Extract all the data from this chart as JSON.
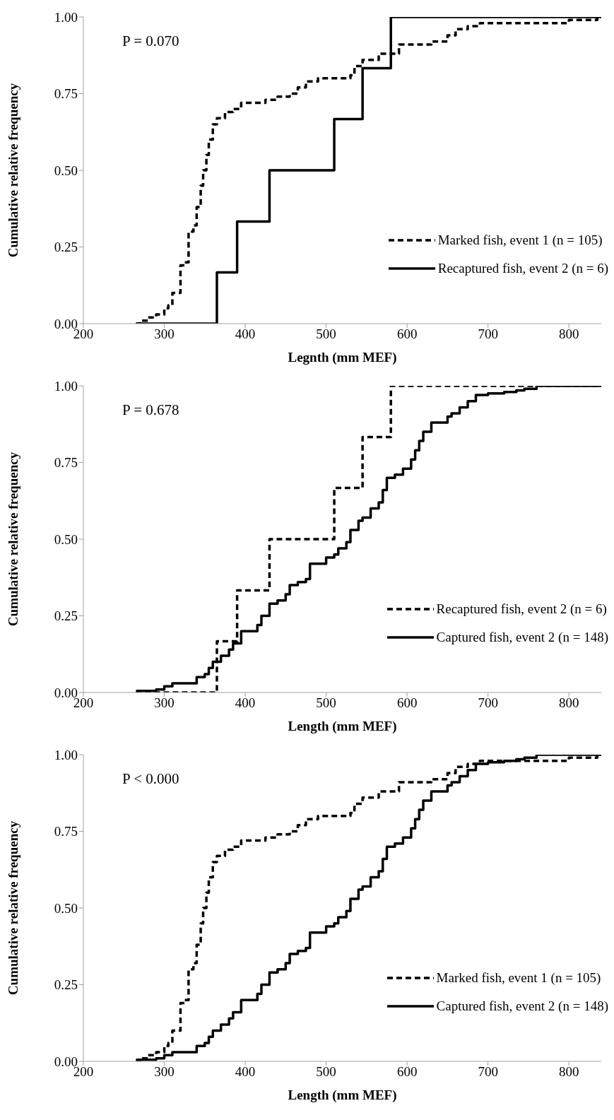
{
  "chart_data": [
    {
      "type": "step",
      "xlabel": "Legnth (mm MEF)",
      "ylabel": "Cumulative relative frequency",
      "annotations": [
        "P = 0.070"
      ],
      "legend": "bottom right",
      "xlim": [
        200,
        840
      ],
      "xticks": [
        200,
        300,
        400,
        500,
        600,
        700,
        800
      ],
      "ylim": [
        0,
        1
      ],
      "yticks": [
        {
          "value": 0,
          "label": "0.00"
        },
        {
          "value": 0.25,
          "label": "0.25"
        },
        {
          "value": 0.5,
          "label": "0.50"
        },
        {
          "value": 0.75,
          "label": "0.75"
        },
        {
          "value": 1,
          "label": "1.00"
        }
      ],
      "series": [
        {
          "name": "Marked fish, event 1 (n = 105)",
          "color": "#000000",
          "line_style": "dashed",
          "x": [
            265,
            270,
            280,
            290,
            300,
            305,
            310,
            320,
            325,
            330,
            336,
            340,
            345,
            348,
            352,
            355,
            360,
            365,
            375,
            385,
            395,
            415,
            425,
            440,
            455,
            465,
            475,
            490,
            530,
            535,
            545,
            565,
            590,
            630,
            650,
            660,
            675,
            690,
            800,
            835
          ],
          "values": [
            0,
            0.01,
            0.02,
            0.03,
            0.05,
            0.06,
            0.1,
            0.19,
            0.2,
            0.3,
            0.32,
            0.38,
            0.45,
            0.5,
            0.55,
            0.6,
            0.65,
            0.67,
            0.69,
            0.7,
            0.72,
            0.72,
            0.73,
            0.74,
            0.75,
            0.77,
            0.79,
            0.8,
            0.81,
            0.84,
            0.86,
            0.88,
            0.91,
            0.92,
            0.94,
            0.96,
            0.97,
            0.98,
            0.99,
            1
          ]
        },
        {
          "name": "Recaptured fish, event 2 (n = 6)",
          "color": "#000000",
          "line_style": "solid",
          "x": [
            265,
            365,
            390,
            430,
            510,
            545,
            580,
            840
          ],
          "values": [
            0,
            0.167,
            0.333,
            0.5,
            0.667,
            0.833,
            1,
            1
          ]
        }
      ]
    },
    {
      "type": "step",
      "xlabel": "Length (mm MEF)",
      "ylabel": "Cumulative relative frequency",
      "annotations": [
        "P = 0.678"
      ],
      "legend": "bottom right",
      "xlim": [
        200,
        840
      ],
      "xticks": [
        200,
        300,
        400,
        500,
        600,
        700,
        800
      ],
      "ylim": [
        0,
        1
      ],
      "yticks": [
        {
          "value": 0,
          "label": "0.00"
        },
        {
          "value": 0.25,
          "label": "0.25"
        },
        {
          "value": 0.5,
          "label": "0.50"
        },
        {
          "value": 0.75,
          "label": "0.75"
        },
        {
          "value": 1,
          "label": "1.00"
        }
      ],
      "series": [
        {
          "name": "Recaptured fish, event 2 (n = 6)",
          "color": "#000000",
          "line_style": "dashed",
          "x": [
            265,
            365,
            390,
            430,
            510,
            545,
            580,
            840
          ],
          "values": [
            0,
            0.167,
            0.333,
            0.5,
            0.667,
            0.833,
            1,
            1
          ]
        },
        {
          "name": "Captured fish, event 2 (n = 148)",
          "color": "#000000",
          "line_style": "solid",
          "x": [
            265,
            290,
            300,
            310,
            330,
            340,
            350,
            355,
            360,
            370,
            380,
            385,
            395,
            410,
            415,
            420,
            430,
            440,
            450,
            455,
            465,
            475,
            480,
            495,
            500,
            510,
            515,
            525,
            530,
            540,
            545,
            555,
            565,
            570,
            575,
            585,
            595,
            605,
            610,
            615,
            620,
            630,
            650,
            655,
            665,
            675,
            685,
            700,
            720,
            735,
            745,
            760,
            840
          ],
          "values": [
            0.005,
            0.01,
            0.02,
            0.03,
            0.03,
            0.05,
            0.06,
            0.08,
            0.1,
            0.12,
            0.14,
            0.16,
            0.2,
            0.2,
            0.22,
            0.25,
            0.29,
            0.3,
            0.32,
            0.35,
            0.36,
            0.37,
            0.42,
            0.42,
            0.44,
            0.45,
            0.47,
            0.49,
            0.53,
            0.56,
            0.57,
            0.6,
            0.62,
            0.66,
            0.7,
            0.71,
            0.73,
            0.76,
            0.79,
            0.82,
            0.85,
            0.88,
            0.9,
            0.91,
            0.93,
            0.95,
            0.97,
            0.975,
            0.98,
            0.985,
            0.99,
            1,
            1
          ]
        }
      ]
    },
    {
      "type": "step",
      "xlabel": "Length (mm MEF)",
      "ylabel": "Cumulative relative frequency",
      "annotations": [
        "P < 0.000"
      ],
      "legend": "bottom right",
      "xlim": [
        200,
        840
      ],
      "xticks": [
        200,
        300,
        400,
        500,
        600,
        700,
        800
      ],
      "ylim": [
        0,
        1
      ],
      "yticks": [
        {
          "value": 0,
          "label": "0.00"
        },
        {
          "value": 0.25,
          "label": "0.25"
        },
        {
          "value": 0.5,
          "label": "0.50"
        },
        {
          "value": 0.75,
          "label": "0.75"
        },
        {
          "value": 1,
          "label": "1.00"
        }
      ],
      "series": [
        {
          "name": "Marked fish, event 1 (n = 105)",
          "color": "#000000",
          "line_style": "dashed",
          "x": [
            265,
            270,
            280,
            290,
            300,
            305,
            310,
            320,
            325,
            330,
            336,
            340,
            345,
            348,
            352,
            355,
            360,
            365,
            375,
            385,
            395,
            415,
            425,
            440,
            455,
            465,
            475,
            490,
            530,
            535,
            545,
            565,
            590,
            630,
            650,
            660,
            675,
            690,
            800,
            835
          ],
          "values": [
            0,
            0.01,
            0.02,
            0.03,
            0.05,
            0.06,
            0.1,
            0.19,
            0.2,
            0.3,
            0.32,
            0.38,
            0.45,
            0.5,
            0.55,
            0.6,
            0.65,
            0.67,
            0.69,
            0.7,
            0.72,
            0.72,
            0.73,
            0.74,
            0.75,
            0.77,
            0.79,
            0.8,
            0.81,
            0.84,
            0.86,
            0.88,
            0.91,
            0.92,
            0.94,
            0.96,
            0.97,
            0.98,
            0.99,
            1
          ]
        },
        {
          "name": "Captured fish, event 2 (n = 148)",
          "color": "#000000",
          "line_style": "solid",
          "x": [
            265,
            290,
            300,
            310,
            330,
            340,
            350,
            355,
            360,
            370,
            380,
            385,
            395,
            410,
            415,
            420,
            430,
            440,
            450,
            455,
            465,
            475,
            480,
            495,
            500,
            510,
            515,
            525,
            530,
            540,
            545,
            555,
            565,
            570,
            575,
            585,
            595,
            605,
            610,
            615,
            620,
            630,
            650,
            655,
            665,
            675,
            685,
            700,
            720,
            735,
            745,
            760,
            840
          ],
          "values": [
            0.005,
            0.01,
            0.02,
            0.03,
            0.03,
            0.05,
            0.06,
            0.08,
            0.1,
            0.12,
            0.14,
            0.16,
            0.2,
            0.2,
            0.22,
            0.25,
            0.29,
            0.3,
            0.32,
            0.35,
            0.36,
            0.37,
            0.42,
            0.42,
            0.44,
            0.45,
            0.47,
            0.49,
            0.53,
            0.56,
            0.57,
            0.6,
            0.62,
            0.66,
            0.7,
            0.71,
            0.73,
            0.76,
            0.79,
            0.82,
            0.85,
            0.88,
            0.9,
            0.91,
            0.93,
            0.95,
            0.97,
            0.975,
            0.98,
            0.985,
            0.99,
            1,
            1
          ]
        }
      ]
    }
  ]
}
